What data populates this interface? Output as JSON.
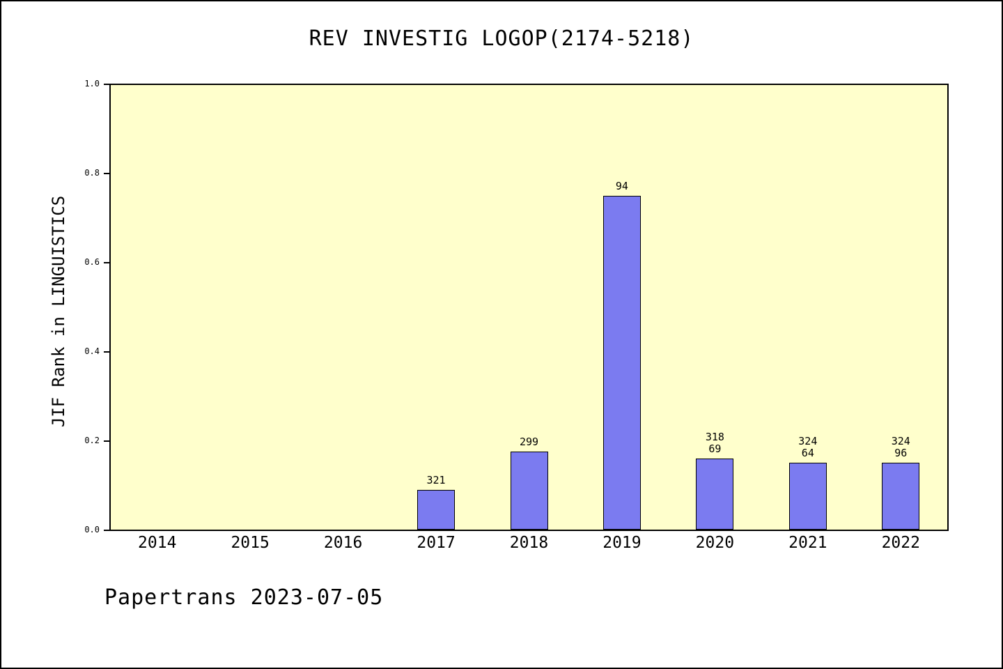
{
  "chart_data": {
    "type": "bar",
    "title": "REV INVESTIG LOGOP(2174-5218)",
    "ylabel": "JIF Rank in LINGUISTICS",
    "xlabel": "",
    "categories": [
      "2014",
      "2015",
      "2016",
      "2017",
      "2018",
      "2019",
      "2020",
      "2021",
      "2022"
    ],
    "values": [
      null,
      null,
      null,
      0.09,
      0.175,
      0.75,
      0.16,
      0.15,
      0.15
    ],
    "bar_labels": [
      "",
      "",
      "",
      "321",
      "299",
      "94",
      "318\n69",
      "324\n64",
      "324\n96"
    ],
    "ylim": [
      0,
      1.0
    ],
    "yticks": [
      0.0,
      0.2,
      0.4,
      0.6,
      0.8,
      1.0
    ],
    "grid": false,
    "legend": "none",
    "plot_bg": "#ffffcc",
    "bar_color": "#7b7bf0",
    "bar_border": "#000000"
  },
  "footer": {
    "text": "Papertrans 2023-07-05"
  }
}
